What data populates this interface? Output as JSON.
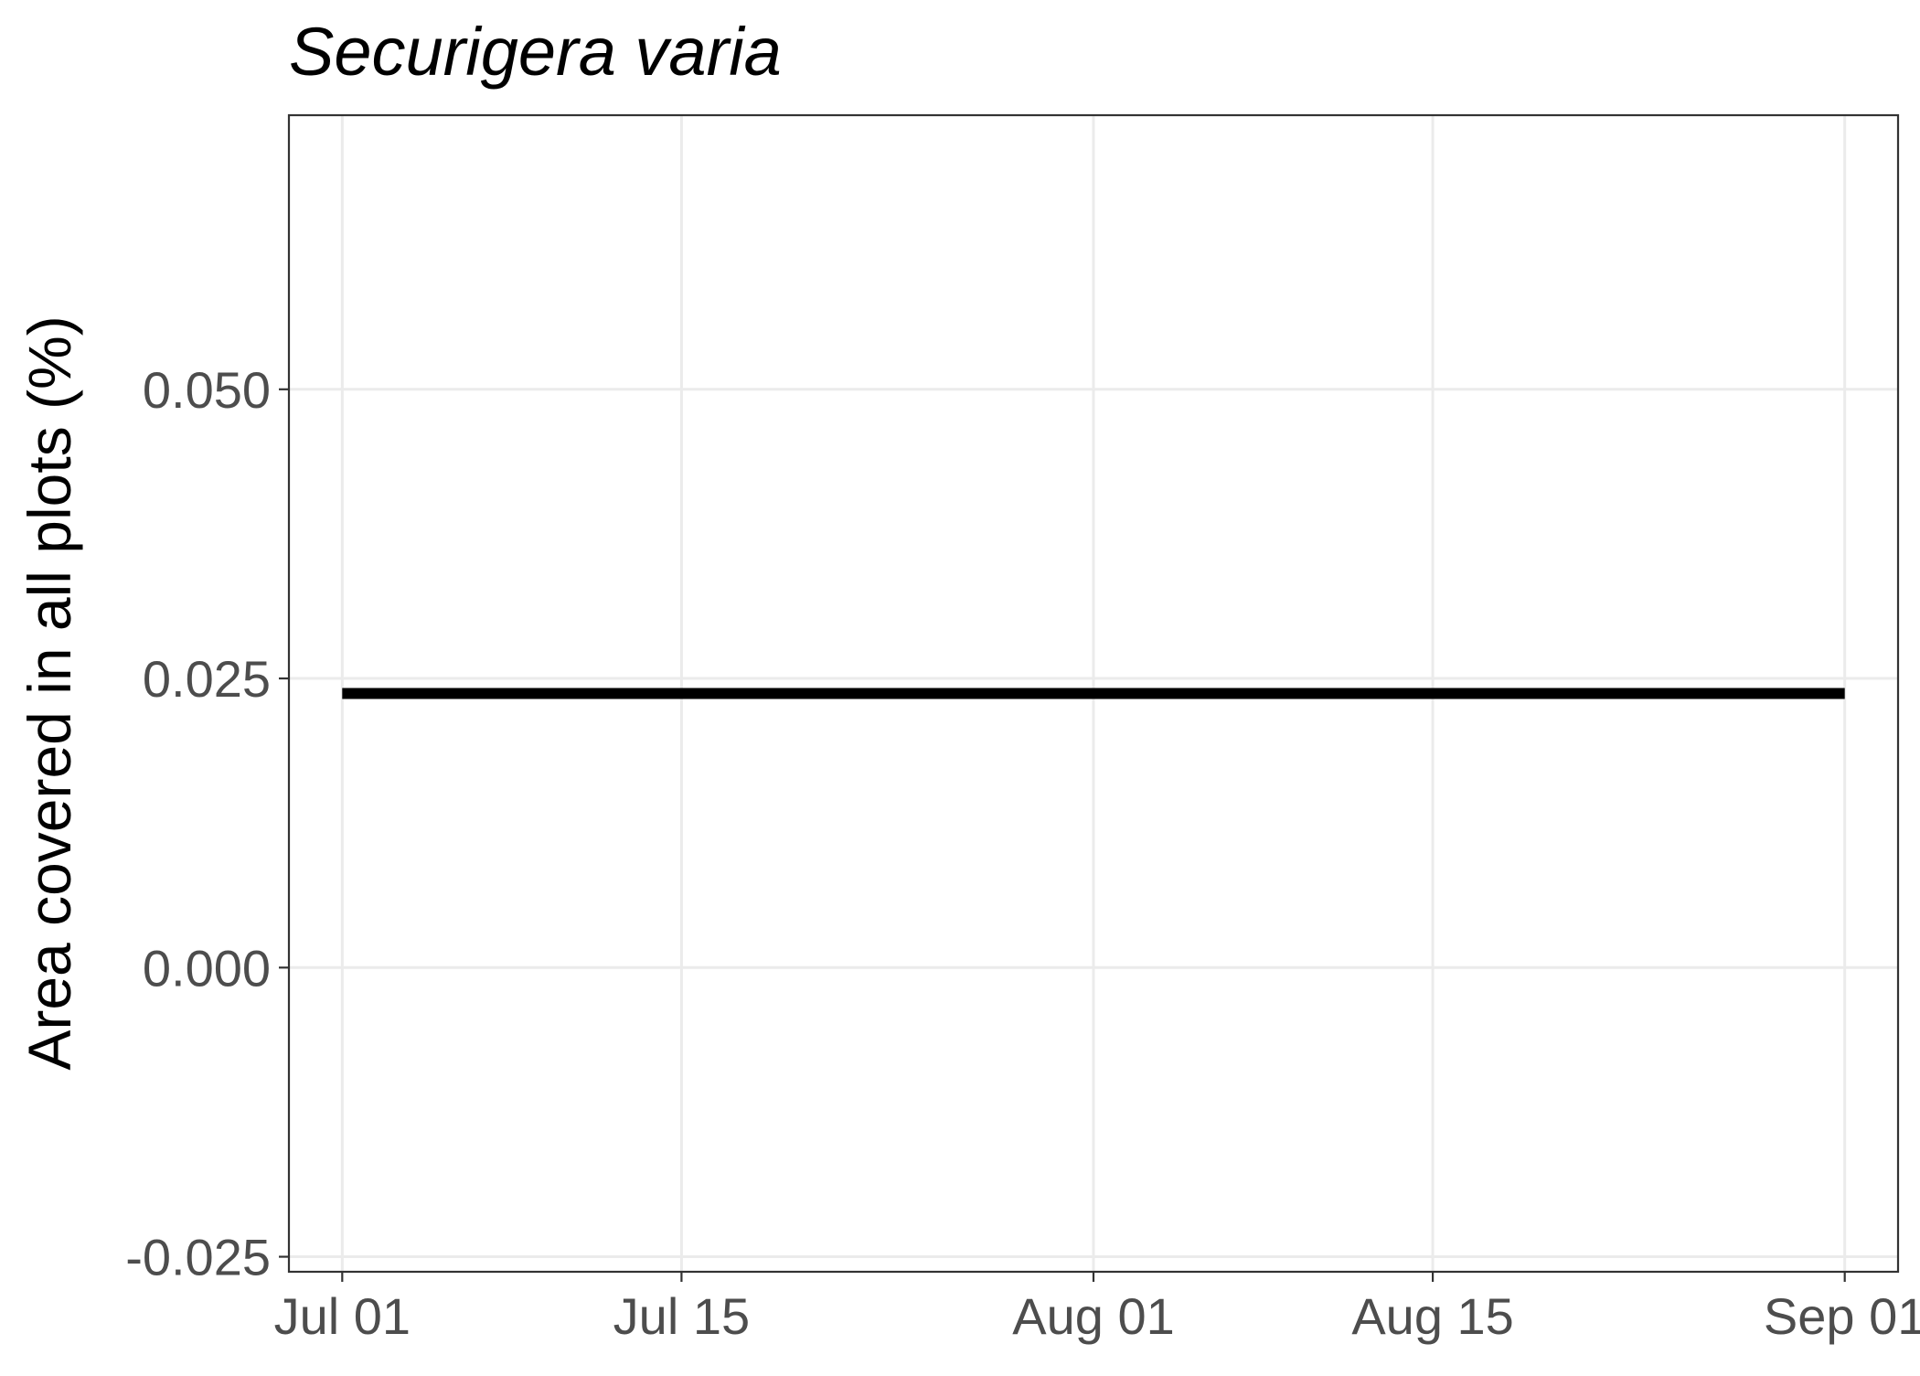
{
  "chart_data": {
    "type": "line",
    "title": "Securigera varia",
    "xlabel": "",
    "ylabel": "Area covered in all plots (%)",
    "x_tick_labels": [
      "Jul 01",
      "Jul 15",
      "Aug 01",
      "Aug 15",
      "Sep 01"
    ],
    "x_tick_values": [
      "2023-07-01",
      "2023-07-15",
      "2023-08-01",
      "2023-08-15",
      "2023-09-01"
    ],
    "y_tick_labels": [
      "-0.025",
      "0.000",
      "0.025",
      "0.050"
    ],
    "y_tick_values": [
      -0.025,
      0.0,
      0.025,
      0.05
    ],
    "xlim": [
      "2023-06-28.8",
      "2023-09-03.2"
    ],
    "ylim": [
      -0.0263,
      0.0737
    ],
    "grid": true,
    "legend": "none",
    "series": [
      {
        "x": [
          "2023-07-01",
          "2023-09-01"
        ],
        "y": [
          0.0237,
          0.0237
        ],
        "color": "#000000"
      }
    ]
  },
  "colors": {
    "line": "#000000",
    "grid": "#ebebeb",
    "panel_border": "#333333",
    "tick_label": "#4d4d4d"
  }
}
